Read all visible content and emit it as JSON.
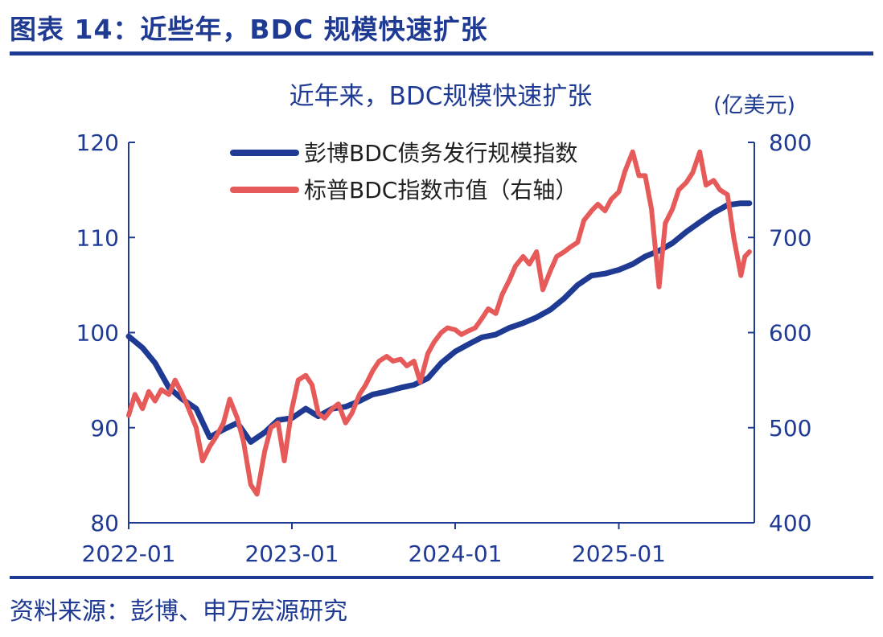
{
  "figure_title": "图表 14：近些年，BDC 规模快速扩张",
  "source_note": "资料来源：彭博、申万宏源研究",
  "chart_data": {
    "type": "line",
    "title": "近年来，BDC规模快速扩张",
    "y2_unit_label": "(亿美元)",
    "x_tick_labels": [
      "2022-01",
      "2023-01",
      "2024-01",
      "2025-01"
    ],
    "x_range": [
      "2022-01-01",
      "2025-10-31"
    ],
    "y_left": {
      "ylim": [
        80,
        120
      ],
      "ticks": [
        80,
        90,
        100,
        110,
        120
      ]
    },
    "y_right": {
      "ylim": [
        400,
        800
      ],
      "ticks": [
        400,
        500,
        600,
        700,
        800
      ]
    },
    "grid": false,
    "legend_position": "top",
    "series": [
      {
        "name": "彭博BDC债务发行规模指数",
        "axis": "left",
        "color": "#1f3a93",
        "points": [
          [
            "2022-01-01",
            99.6
          ],
          [
            "2022-02-01",
            98.4
          ],
          [
            "2022-03-01",
            96.8
          ],
          [
            "2022-04-01",
            94.2
          ],
          [
            "2022-05-01",
            93.0
          ],
          [
            "2022-06-01",
            92.0
          ],
          [
            "2022-07-01",
            89.0
          ],
          [
            "2022-08-01",
            89.8
          ],
          [
            "2022-09-01",
            90.5
          ],
          [
            "2022-10-01",
            88.5
          ],
          [
            "2022-11-01",
            89.5
          ],
          [
            "2022-12-01",
            90.8
          ],
          [
            "2023-01-01",
            91.0
          ],
          [
            "2023-02-01",
            92.0
          ],
          [
            "2023-03-01",
            91.2
          ],
          [
            "2023-04-01",
            92.0
          ],
          [
            "2023-05-01",
            92.2
          ],
          [
            "2023-06-01",
            92.8
          ],
          [
            "2023-07-01",
            93.5
          ],
          [
            "2023-08-01",
            93.8
          ],
          [
            "2023-09-01",
            94.2
          ],
          [
            "2023-10-01",
            94.5
          ],
          [
            "2023-11-01",
            95.2
          ],
          [
            "2023-12-01",
            96.8
          ],
          [
            "2024-01-01",
            98.0
          ],
          [
            "2024-02-01",
            98.8
          ],
          [
            "2024-03-01",
            99.5
          ],
          [
            "2024-04-01",
            99.8
          ],
          [
            "2024-05-01",
            100.5
          ],
          [
            "2024-06-01",
            101.0
          ],
          [
            "2024-07-01",
            101.6
          ],
          [
            "2024-08-01",
            102.4
          ],
          [
            "2024-09-01",
            103.6
          ],
          [
            "2024-10-01",
            105.0
          ],
          [
            "2024-11-01",
            106.0
          ],
          [
            "2024-12-01",
            106.2
          ],
          [
            "2025-01-01",
            106.6
          ],
          [
            "2025-02-01",
            107.2
          ],
          [
            "2025-03-01",
            108.0
          ],
          [
            "2025-04-01",
            108.6
          ],
          [
            "2025-05-01",
            109.4
          ],
          [
            "2025-06-01",
            110.6
          ],
          [
            "2025-07-01",
            111.6
          ],
          [
            "2025-08-01",
            112.6
          ],
          [
            "2025-09-01",
            113.4
          ],
          [
            "2025-10-01",
            113.6
          ],
          [
            "2025-10-20",
            113.6
          ]
        ]
      },
      {
        "name": "标普BDC指数市值（右轴）",
        "axis": "right",
        "color": "#e65a5a",
        "points": [
          [
            "2022-01-01",
            513
          ],
          [
            "2022-01-15",
            535
          ],
          [
            "2022-02-01",
            520
          ],
          [
            "2022-02-15",
            538
          ],
          [
            "2022-03-01",
            528
          ],
          [
            "2022-03-15",
            540
          ],
          [
            "2022-04-01",
            535
          ],
          [
            "2022-04-15",
            550
          ],
          [
            "2022-05-01",
            535
          ],
          [
            "2022-05-15",
            520
          ],
          [
            "2022-06-01",
            500
          ],
          [
            "2022-06-15",
            465
          ],
          [
            "2022-07-01",
            480
          ],
          [
            "2022-07-15",
            490
          ],
          [
            "2022-08-01",
            505
          ],
          [
            "2022-08-15",
            530
          ],
          [
            "2022-09-01",
            510
          ],
          [
            "2022-09-15",
            485
          ],
          [
            "2022-10-01",
            440
          ],
          [
            "2022-10-15",
            430
          ],
          [
            "2022-11-01",
            475
          ],
          [
            "2022-11-15",
            500
          ],
          [
            "2022-12-01",
            505
          ],
          [
            "2022-12-15",
            465
          ],
          [
            "2023-01-01",
            520
          ],
          [
            "2023-01-15",
            550
          ],
          [
            "2023-02-01",
            555
          ],
          [
            "2023-02-15",
            545
          ],
          [
            "2023-03-01",
            515
          ],
          [
            "2023-03-15",
            510
          ],
          [
            "2023-04-01",
            520
          ],
          [
            "2023-04-15",
            525
          ],
          [
            "2023-05-01",
            505
          ],
          [
            "2023-05-15",
            515
          ],
          [
            "2023-06-01",
            535
          ],
          [
            "2023-06-15",
            545
          ],
          [
            "2023-07-01",
            560
          ],
          [
            "2023-07-15",
            570
          ],
          [
            "2023-08-01",
            575
          ],
          [
            "2023-08-15",
            570
          ],
          [
            "2023-09-01",
            572
          ],
          [
            "2023-09-15",
            565
          ],
          [
            "2023-10-01",
            570
          ],
          [
            "2023-10-15",
            548
          ],
          [
            "2023-11-01",
            578
          ],
          [
            "2023-11-15",
            590
          ],
          [
            "2023-12-01",
            600
          ],
          [
            "2023-12-15",
            605
          ],
          [
            "2024-01-01",
            603
          ],
          [
            "2024-01-15",
            598
          ],
          [
            "2024-02-01",
            602
          ],
          [
            "2024-02-15",
            605
          ],
          [
            "2024-03-01",
            615
          ],
          [
            "2024-03-15",
            625
          ],
          [
            "2024-04-01",
            620
          ],
          [
            "2024-04-15",
            640
          ],
          [
            "2024-05-01",
            655
          ],
          [
            "2024-05-15",
            670
          ],
          [
            "2024-06-01",
            680
          ],
          [
            "2024-06-15",
            672
          ],
          [
            "2024-07-01",
            685
          ],
          [
            "2024-07-15",
            645
          ],
          [
            "2024-08-01",
            665
          ],
          [
            "2024-08-15",
            680
          ],
          [
            "2024-09-01",
            685
          ],
          [
            "2024-09-15",
            690
          ],
          [
            "2024-10-01",
            695
          ],
          [
            "2024-10-15",
            718
          ],
          [
            "2024-11-01",
            728
          ],
          [
            "2024-11-15",
            735
          ],
          [
            "2024-12-01",
            728
          ],
          [
            "2024-12-15",
            740
          ],
          [
            "2025-01-01",
            748
          ],
          [
            "2025-01-15",
            770
          ],
          [
            "2025-02-01",
            790
          ],
          [
            "2025-02-15",
            765
          ],
          [
            "2025-03-01",
            765
          ],
          [
            "2025-03-15",
            730
          ],
          [
            "2025-04-01",
            648
          ],
          [
            "2025-04-15",
            715
          ],
          [
            "2025-05-01",
            730
          ],
          [
            "2025-05-15",
            750
          ],
          [
            "2025-06-01",
            758
          ],
          [
            "2025-06-15",
            768
          ],
          [
            "2025-07-01",
            790
          ],
          [
            "2025-07-15",
            755
          ],
          [
            "2025-08-01",
            760
          ],
          [
            "2025-08-15",
            750
          ],
          [
            "2025-09-01",
            745
          ],
          [
            "2025-09-15",
            700
          ],
          [
            "2025-10-01",
            660
          ],
          [
            "2025-10-10",
            680
          ],
          [
            "2025-10-20",
            685
          ]
        ]
      }
    ]
  }
}
